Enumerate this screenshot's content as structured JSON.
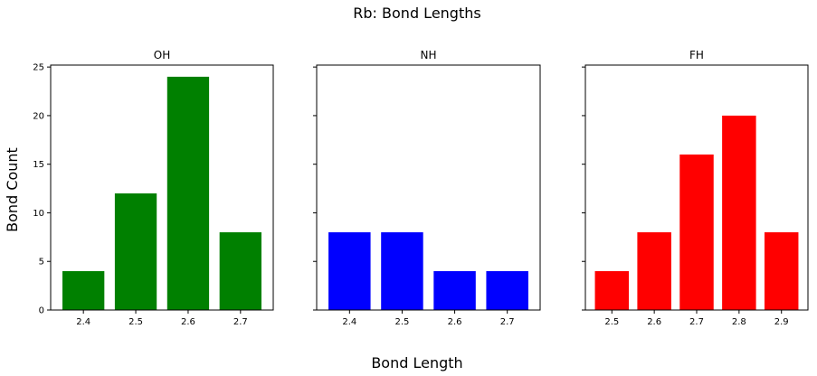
{
  "figure": {
    "title": "Rb: Bond Lengths",
    "xlabel": "Bond Length",
    "ylabel": "Bond Count"
  },
  "chart_data": [
    {
      "type": "bar",
      "title": "OH",
      "categories": [
        "2.4",
        "2.5",
        "2.6",
        "2.7"
      ],
      "values": [
        4,
        12,
        24,
        8
      ],
      "color": "#008000",
      "ylim": [
        0,
        25.2
      ],
      "yticks": [
        "0",
        "5",
        "10",
        "15",
        "20",
        "25"
      ],
      "show_ytick_labels": true,
      "grid": false
    },
    {
      "type": "bar",
      "title": "NH",
      "categories": [
        "2.4",
        "2.5",
        "2.6",
        "2.7"
      ],
      "values": [
        8,
        8,
        4,
        4
      ],
      "color": "#0000ff",
      "ylim": [
        0,
        25.2
      ],
      "yticks": [
        "0",
        "5",
        "10",
        "15",
        "20",
        "25"
      ],
      "show_ytick_labels": false,
      "grid": false
    },
    {
      "type": "bar",
      "title": "FH",
      "categories": [
        "2.5",
        "2.6",
        "2.7",
        "2.8",
        "2.9"
      ],
      "values": [
        4,
        8,
        16,
        20,
        8
      ],
      "color": "#ff0000",
      "ylim": [
        0,
        25.2
      ],
      "yticks": [
        "0",
        "5",
        "10",
        "15",
        "20",
        "25"
      ],
      "show_ytick_labels": false,
      "grid": false
    }
  ]
}
